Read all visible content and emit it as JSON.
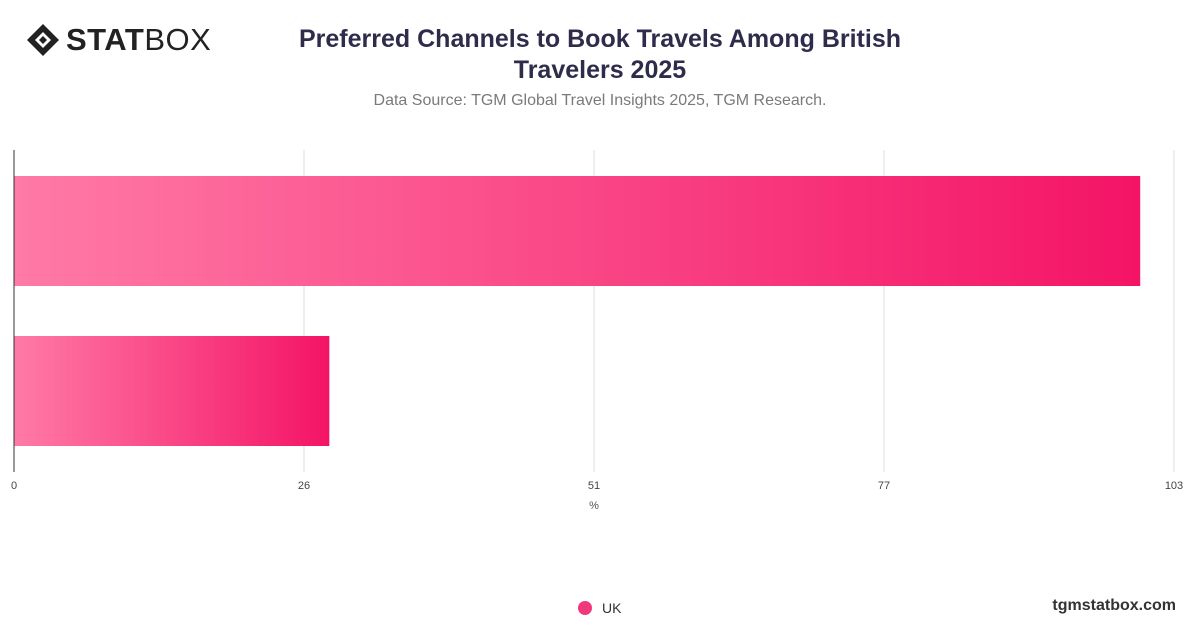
{
  "brand": {
    "logo_bold": "STAT",
    "logo_light": "BOX",
    "site": "tgmstatbox.com"
  },
  "header": {
    "title": "Preferred Channels to Book Travels Among British Travelers 2025",
    "subtitle": "Data Source: TGM Global Travel Insights 2025, TGM Research."
  },
  "chart_data": {
    "type": "bar",
    "orientation": "horizontal",
    "title": "Preferred Channels to Book Travels Among British Travelers 2025",
    "xlabel": "%",
    "ylabel": "",
    "xlim": [
      0,
      103
    ],
    "ticks": [
      "0",
      "26",
      "51",
      "77",
      "103"
    ],
    "tick_values": [
      0,
      25.75,
      51.5,
      77.25,
      103
    ],
    "grid": true,
    "legend": "bottom-center",
    "series": [
      {
        "name": "UK",
        "values": [
          100,
          28
        ]
      }
    ],
    "colors": {
      "bar_start": "#ff7aa6",
      "bar_end": "#f41466",
      "grid": "#dddddd",
      "axis": "#333333"
    }
  },
  "legend": {
    "label": "UK",
    "color": "#f0397a"
  }
}
